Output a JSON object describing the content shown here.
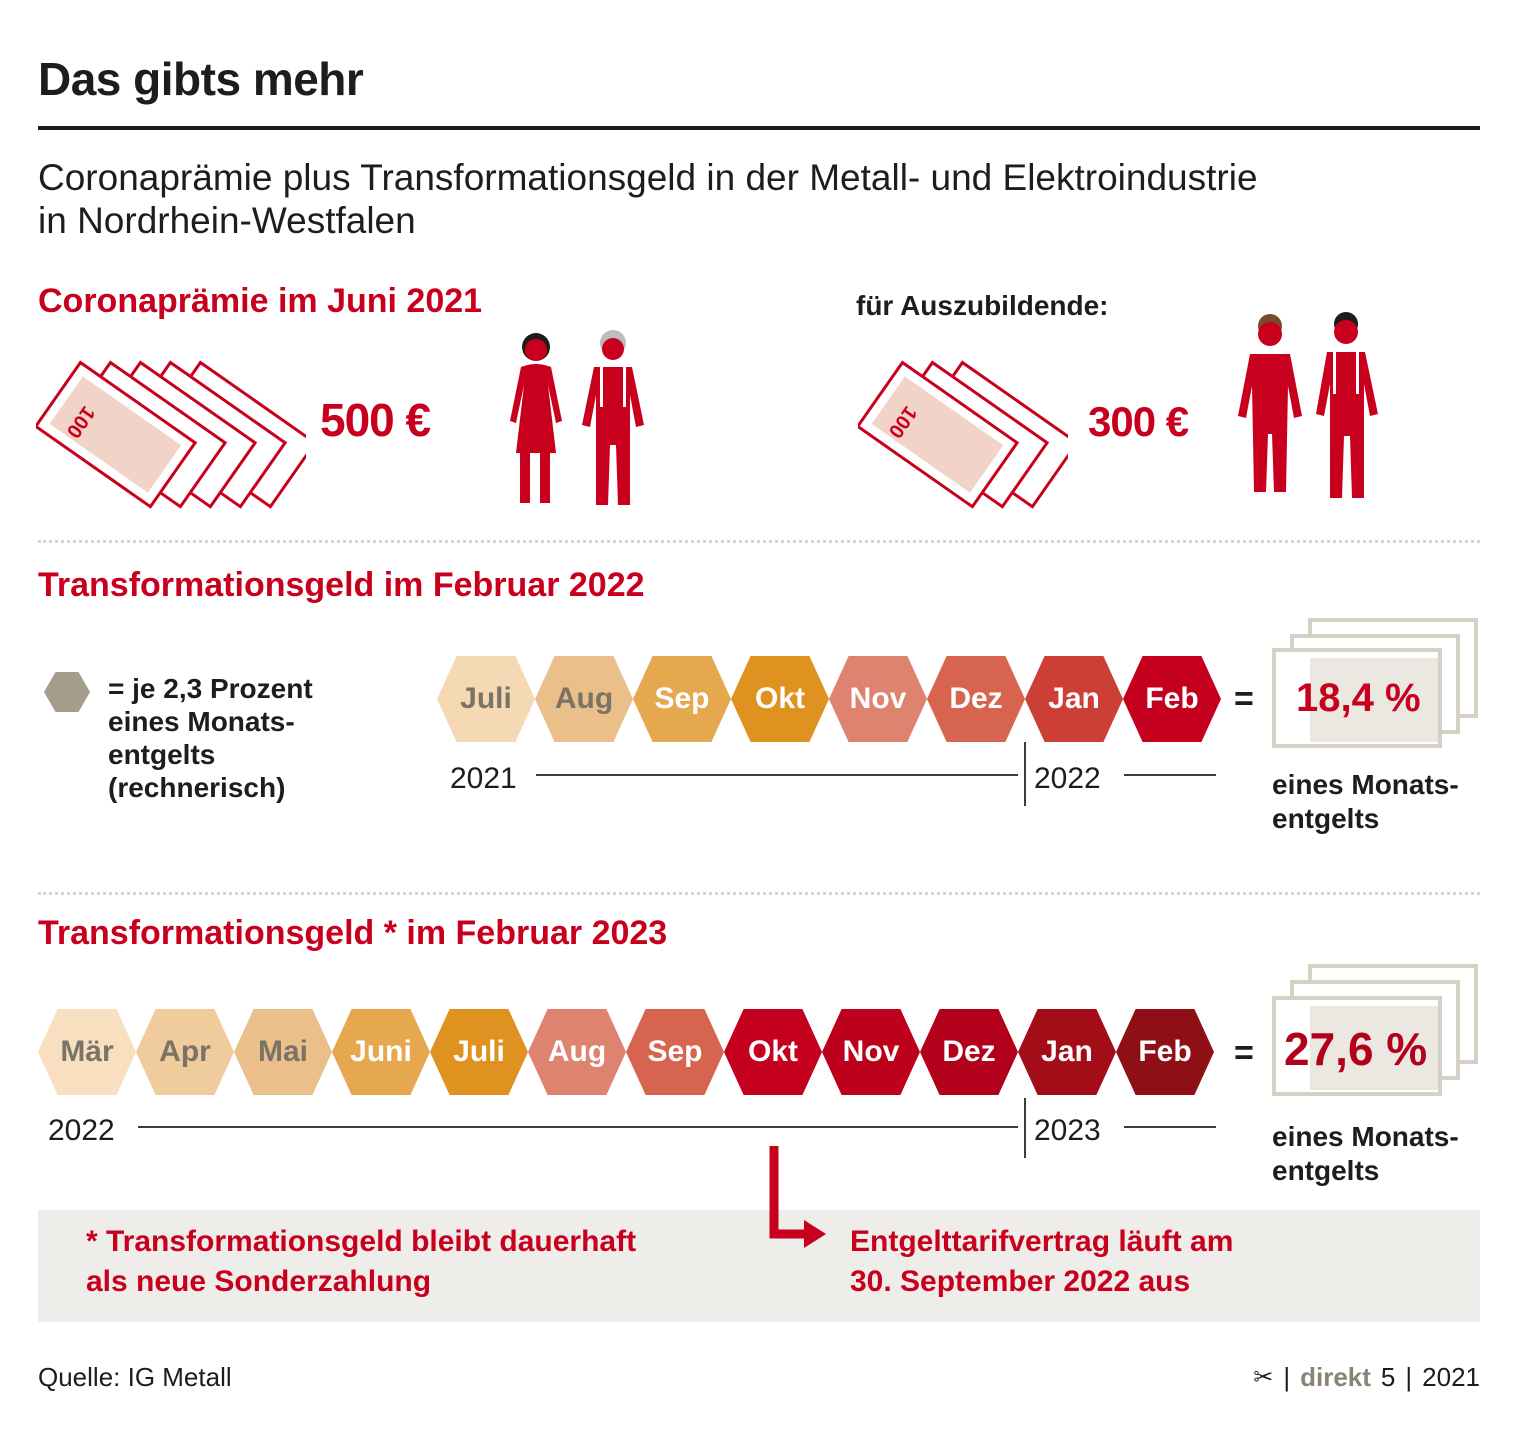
{
  "header": {
    "title": "Das gibts mehr",
    "subtitle_line1": "Coronaprämie plus Transformationsgeld in der Metall- und Elektroindustrie",
    "subtitle_line2": "in Nordrhein-Westfalen"
  },
  "section_corona": {
    "heading": "Coronaprämie im Juni 2021",
    "employees_amount": "500 €",
    "trainees_label": "für Auszubildende:",
    "trainees_amount": "300 €",
    "banknote_label": "100"
  },
  "section_2022": {
    "heading": "Transformationsgeld im Februar 2022",
    "legend_lines": [
      "= je 2,3 Prozent",
      "eines Monats-",
      "entgelts",
      "(rechnerisch)"
    ],
    "months": [
      {
        "label": "Juli",
        "bg": "#f5d9b4",
        "fg": "#7a7466"
      },
      {
        "label": "Aug",
        "bg": "#ebbf8a",
        "fg": "#7a7466"
      },
      {
        "label": "Sep",
        "bg": "#e6a84f",
        "fg": "#ffffff"
      },
      {
        "label": "Okt",
        "bg": "#df9220",
        "fg": "#ffffff"
      },
      {
        "label": "Nov",
        "bg": "#de8370",
        "fg": "#ffffff"
      },
      {
        "label": "Dez",
        "bg": "#d7644e",
        "fg": "#ffffff"
      },
      {
        "label": "Jan",
        "bg": "#cc3f35",
        "fg": "#ffffff"
      },
      {
        "label": "Feb",
        "bg": "#c4001e",
        "fg": "#ffffff"
      }
    ],
    "year_start": "2021",
    "year_end": "2022",
    "equals": "=",
    "result": "18,4 %",
    "result_sub_line1": "eines Monats-",
    "result_sub_line2": "entgelts"
  },
  "section_2023": {
    "heading": "Transformationsgeld * im Februar 2023",
    "months": [
      {
        "label": "Mär",
        "bg": "#f7dfc0",
        "fg": "#7a7466"
      },
      {
        "label": "Apr",
        "bg": "#f0cc9d",
        "fg": "#7a7466"
      },
      {
        "label": "Mai",
        "bg": "#ebbf8a",
        "fg": "#7a7466"
      },
      {
        "label": "Juni",
        "bg": "#e6a84f",
        "fg": "#ffffff"
      },
      {
        "label": "Juli",
        "bg": "#df9220",
        "fg": "#ffffff"
      },
      {
        "label": "Aug",
        "bg": "#de8370",
        "fg": "#ffffff"
      },
      {
        "label": "Sep",
        "bg": "#d7644e",
        "fg": "#ffffff"
      },
      {
        "label": "Okt",
        "bg": "#c4001e",
        "fg": "#ffffff"
      },
      {
        "label": "Nov",
        "bg": "#bd001c",
        "fg": "#ffffff"
      },
      {
        "label": "Dez",
        "bg": "#b3001b",
        "fg": "#ffffff"
      },
      {
        "label": "Jan",
        "bg": "#a20d18",
        "fg": "#ffffff"
      },
      {
        "label": "Feb",
        "bg": "#8e1016",
        "fg": "#ffffff"
      }
    ],
    "year_start": "2022",
    "year_end": "2023",
    "equals": "=",
    "result": "27,6 %",
    "result_sub_line1": "eines Monats-",
    "result_sub_line2": "entgelts"
  },
  "footnote": {
    "left_line1": "* Transformationsgeld bleibt dauerhaft",
    "left_line2": "als neue Sonderzahlung",
    "right_line1": "Entgelttarifvertrag läuft am",
    "right_line2": "30. September 2022 aus"
  },
  "footer": {
    "source": "Quelle: IG Metall",
    "scissors": "✂",
    "brand": "direkt",
    "issue": "5",
    "year": "2021",
    "sep": "|"
  },
  "colors": {
    "accent_red": "#c8001e",
    "figure_red": "#c8001e",
    "legend_hex": "#a59d8c",
    "banknote_fill": "#f2d3c7"
  }
}
